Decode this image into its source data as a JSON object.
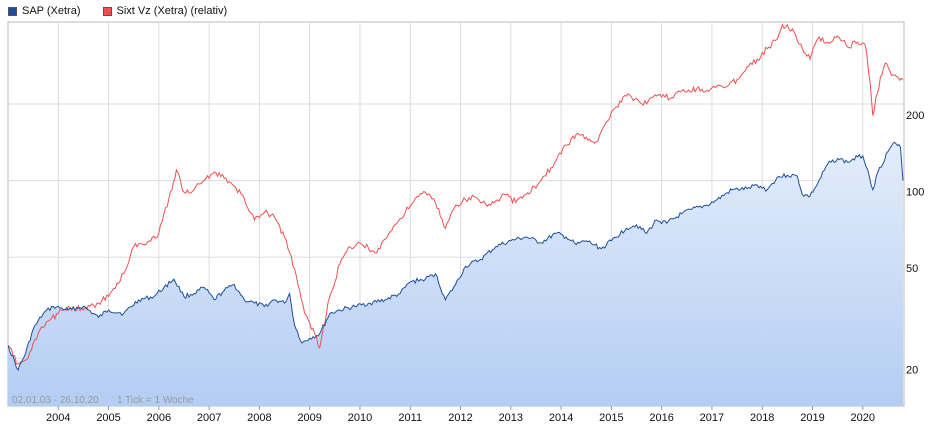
{
  "legend": {
    "sap_label": "SAP (Xetra)",
    "sixt_label": "Sixt Vz (Xetra) (relativ)"
  },
  "colors": {
    "sap_line": "#1f4e9c",
    "sap_fill_top": "#e3edfb",
    "sap_fill_bottom": "#b4cdf3",
    "sixt_line": "#f05050",
    "grid": "#dcdcdc"
  },
  "footer": {
    "date_range": "02.01.03 - 26.10.20",
    "tick_info": "1 Tick = 1 Woche"
  },
  "chart_data": {
    "type": "line",
    "y_scale": "log",
    "ylim": [
      13,
      420
    ],
    "xlim": [
      2003.0,
      2020.82
    ],
    "yticks": [
      20,
      50,
      100,
      200
    ],
    "ytick_labels": [
      "20",
      "50",
      "100",
      "200"
    ],
    "xticks": [
      2004,
      2005,
      2006,
      2007,
      2008,
      2009,
      2010,
      2011,
      2012,
      2013,
      2014,
      2015,
      2016,
      2017,
      2018,
      2019,
      2020
    ],
    "xtick_labels": [
      "2004",
      "2005",
      "2006",
      "2007",
      "2008",
      "2009",
      "2010",
      "2011",
      "2012",
      "2013",
      "2014",
      "2015",
      "2016",
      "2017",
      "2018",
      "2019",
      "2020"
    ],
    "series": [
      {
        "name": "SAP (Xetra)",
        "fill": true,
        "points": [
          [
            2003.0,
            22.5
          ],
          [
            2003.2,
            18
          ],
          [
            2003.35,
            21
          ],
          [
            2003.5,
            26
          ],
          [
            2003.7,
            30
          ],
          [
            2003.9,
            32
          ],
          [
            2004.2,
            31
          ],
          [
            2004.5,
            32
          ],
          [
            2004.8,
            29
          ],
          [
            2005.0,
            31
          ],
          [
            2005.3,
            30
          ],
          [
            2005.6,
            34
          ],
          [
            2005.9,
            35
          ],
          [
            2006.1,
            38
          ],
          [
            2006.3,
            41
          ],
          [
            2006.5,
            35
          ],
          [
            2006.7,
            36
          ],
          [
            2006.9,
            38
          ],
          [
            2007.1,
            34
          ],
          [
            2007.3,
            37
          ],
          [
            2007.5,
            39
          ],
          [
            2007.7,
            34
          ],
          [
            2007.9,
            33
          ],
          [
            2008.1,
            32
          ],
          [
            2008.3,
            34
          ],
          [
            2008.5,
            33
          ],
          [
            2008.6,
            36
          ],
          [
            2008.7,
            27
          ],
          [
            2008.85,
            23
          ],
          [
            2009.0,
            24
          ],
          [
            2009.2,
            25
          ],
          [
            2009.4,
            30
          ],
          [
            2009.6,
            31
          ],
          [
            2009.9,
            32
          ],
          [
            2010.2,
            33
          ],
          [
            2010.5,
            34
          ],
          [
            2010.8,
            36
          ],
          [
            2011.0,
            40
          ],
          [
            2011.3,
            41
          ],
          [
            2011.5,
            43
          ],
          [
            2011.7,
            34
          ],
          [
            2011.9,
            39
          ],
          [
            2012.1,
            46
          ],
          [
            2012.4,
            49
          ],
          [
            2012.7,
            55
          ],
          [
            2013.0,
            58
          ],
          [
            2013.3,
            60
          ],
          [
            2013.6,
            57
          ],
          [
            2013.9,
            62
          ],
          [
            2014.1,
            60
          ],
          [
            2014.3,
            56
          ],
          [
            2014.5,
            58
          ],
          [
            2014.8,
            54
          ],
          [
            2015.0,
            58
          ],
          [
            2015.3,
            65
          ],
          [
            2015.5,
            67
          ],
          [
            2015.7,
            62
          ],
          [
            2015.9,
            70
          ],
          [
            2016.1,
            68
          ],
          [
            2016.4,
            74
          ],
          [
            2016.6,
            77
          ],
          [
            2016.9,
            80
          ],
          [
            2017.1,
            84
          ],
          [
            2017.4,
            92
          ],
          [
            2017.7,
            93
          ],
          [
            2017.9,
            96
          ],
          [
            2018.1,
            92
          ],
          [
            2018.3,
            103
          ],
          [
            2018.5,
            105
          ],
          [
            2018.7,
            104
          ],
          [
            2018.8,
            88
          ],
          [
            2018.95,
            87
          ],
          [
            2019.1,
            97
          ],
          [
            2019.3,
            116
          ],
          [
            2019.5,
            122
          ],
          [
            2019.7,
            118
          ],
          [
            2019.9,
            124
          ],
          [
            2020.0,
            125
          ],
          [
            2020.1,
            110
          ],
          [
            2020.2,
            92
          ],
          [
            2020.3,
            108
          ],
          [
            2020.5,
            130
          ],
          [
            2020.6,
            140
          ],
          [
            2020.75,
            135
          ],
          [
            2020.8,
            100
          ]
        ]
      },
      {
        "name": "Sixt Vz (Xetra) (relativ)",
        "fill": false,
        "points": [
          [
            2003.0,
            22.5
          ],
          [
            2003.2,
            19
          ],
          [
            2003.4,
            20
          ],
          [
            2003.6,
            25
          ],
          [
            2003.8,
            28
          ],
          [
            2004.0,
            30
          ],
          [
            2004.2,
            32
          ],
          [
            2004.5,
            31
          ],
          [
            2004.8,
            33
          ],
          [
            2005.0,
            35
          ],
          [
            2005.3,
            43
          ],
          [
            2005.5,
            55
          ],
          [
            2005.8,
            58
          ],
          [
            2006.0,
            62
          ],
          [
            2006.2,
            85
          ],
          [
            2006.35,
            110
          ],
          [
            2006.5,
            90
          ],
          [
            2006.7,
            92
          ],
          [
            2006.9,
            100
          ],
          [
            2007.1,
            108
          ],
          [
            2007.3,
            102
          ],
          [
            2007.5,
            95
          ],
          [
            2007.7,
            85
          ],
          [
            2007.9,
            70
          ],
          [
            2008.1,
            75
          ],
          [
            2008.3,
            72
          ],
          [
            2008.5,
            60
          ],
          [
            2008.7,
            45
          ],
          [
            2008.9,
            30
          ],
          [
            2009.1,
            25
          ],
          [
            2009.2,
            22
          ],
          [
            2009.4,
            35
          ],
          [
            2009.6,
            47
          ],
          [
            2009.8,
            55
          ],
          [
            2010.0,
            57
          ],
          [
            2010.3,
            52
          ],
          [
            2010.6,
            63
          ],
          [
            2010.9,
            75
          ],
          [
            2011.1,
            85
          ],
          [
            2011.3,
            90
          ],
          [
            2011.5,
            82
          ],
          [
            2011.7,
            65
          ],
          [
            2011.9,
            80
          ],
          [
            2012.1,
            84
          ],
          [
            2012.3,
            86
          ],
          [
            2012.6,
            80
          ],
          [
            2012.9,
            88
          ],
          [
            2013.1,
            82
          ],
          [
            2013.3,
            88
          ],
          [
            2013.6,
            100
          ],
          [
            2013.9,
            120
          ],
          [
            2014.1,
            138
          ],
          [
            2014.3,
            152
          ],
          [
            2014.5,
            148
          ],
          [
            2014.7,
            142
          ],
          [
            2014.9,
            170
          ],
          [
            2015.1,
            195
          ],
          [
            2015.3,
            215
          ],
          [
            2015.5,
            210
          ],
          [
            2015.7,
            200
          ],
          [
            2015.9,
            215
          ],
          [
            2016.2,
            212
          ],
          [
            2016.4,
            225
          ],
          [
            2016.7,
            230
          ],
          [
            2016.9,
            226
          ],
          [
            2017.1,
            235
          ],
          [
            2017.3,
            234
          ],
          [
            2017.5,
            250
          ],
          [
            2017.7,
            280
          ],
          [
            2017.9,
            300
          ],
          [
            2018.1,
            330
          ],
          [
            2018.3,
            360
          ],
          [
            2018.4,
            410
          ],
          [
            2018.6,
            395
          ],
          [
            2018.8,
            330
          ],
          [
            2018.95,
            300
          ],
          [
            2019.1,
            360
          ],
          [
            2019.3,
            350
          ],
          [
            2019.5,
            370
          ],
          [
            2019.7,
            335
          ],
          [
            2019.9,
            350
          ],
          [
            2020.05,
            340
          ],
          [
            2020.15,
            240
          ],
          [
            2020.2,
            180
          ],
          [
            2020.35,
            255
          ],
          [
            2020.45,
            290
          ],
          [
            2020.6,
            260
          ],
          [
            2020.8,
            250
          ]
        ]
      }
    ]
  }
}
